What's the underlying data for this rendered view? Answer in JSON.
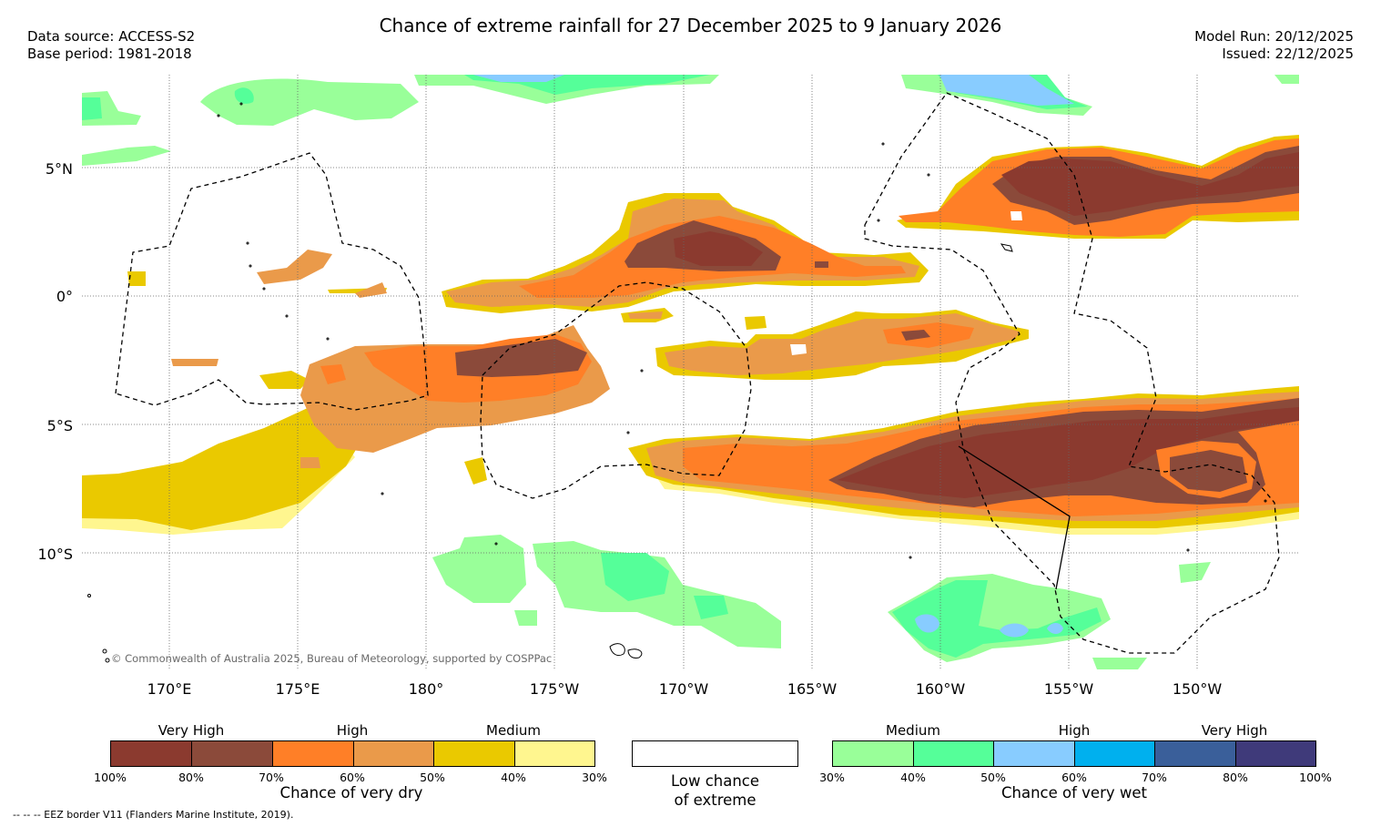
{
  "title": "Chance of extreme rainfall for 27 December 2025 to 9 January 2026",
  "meta_left": {
    "data_source": "Data source: ACCESS-S2",
    "base_period": "Base period: 1981-2018"
  },
  "meta_right": {
    "model_run": "Model Run: 20/12/2025",
    "issued": "Issued: 22/12/2025"
  },
  "latitude_labels": [
    "5°N",
    "0°",
    "5°S",
    "10°S"
  ],
  "longitude_labels": [
    "170°E",
    "175°E",
    "180°",
    "175°W",
    "170°W",
    "165°W",
    "160°W",
    "155°W",
    "150°W"
  ],
  "copyright": "© Commonwealth of Australia 2025, Bureau of Meteorology, supported by COSPPac",
  "colors": {
    "dry": [
      "#8b3a2f",
      "#8b4a3a",
      "#ff7f27",
      "#ea9a4a",
      "#eac900",
      "#fff68f"
    ],
    "wet": [
      "#99ff99",
      "#55ff99",
      "#88ccff",
      "#00b0ee",
      "#3a5f9a",
      "#3f3a7a"
    ],
    "neutral": "#ffffff"
  },
  "legend": {
    "dry": {
      "headers": [
        "Very High",
        "High",
        "Medium"
      ],
      "ticks": [
        "100%",
        "80%",
        "70%",
        "60%",
        "50%",
        "40%",
        "30%"
      ],
      "caption": "Chance of very dry"
    },
    "neutral": {
      "caption_line1": "Low chance",
      "caption_line2": "of extreme"
    },
    "wet": {
      "headers": [
        "Medium",
        "High",
        "Very High"
      ],
      "ticks": [
        "30%",
        "40%",
        "50%",
        "60%",
        "70%",
        "80%",
        "100%"
      ],
      "caption": "Chance of very wet"
    }
  },
  "eez_note": "-- -- -- EEZ border V11 (Flanders Marine Institute, 2019)."
}
